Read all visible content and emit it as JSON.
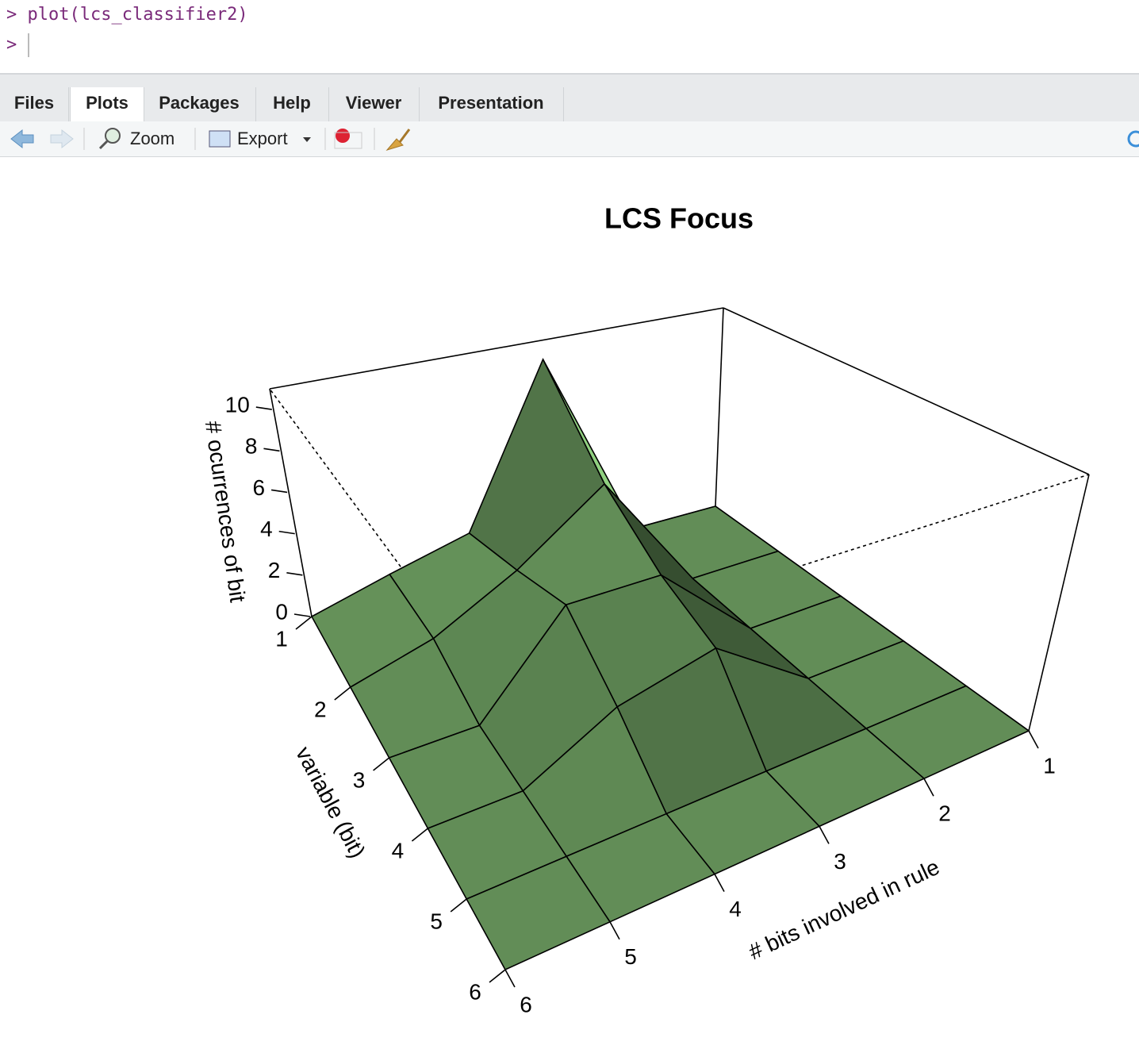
{
  "console": {
    "prompt": ">",
    "command": "plot(lcs_classifier2)"
  },
  "tabs": [
    "Files",
    "Plots",
    "Packages",
    "Help",
    "Viewer",
    "Presentation"
  ],
  "active_tab": 1,
  "toolbar": {
    "zoom": "Zoom",
    "export": "Export"
  },
  "chart_data": {
    "type": "surface",
    "title": "LCS Focus",
    "x_label": "# bits involved in rule",
    "y_label": "variable (bit)",
    "z_label": "# ocurrences of bit",
    "x": [
      1,
      2,
      3,
      4,
      5,
      6
    ],
    "y": [
      1,
      2,
      3,
      4,
      5,
      6
    ],
    "z": [
      [
        0,
        0,
        10,
        2,
        1,
        0
      ],
      [
        0,
        0,
        6,
        3,
        1,
        0
      ],
      [
        0,
        0,
        4,
        4,
        0,
        0
      ],
      [
        0,
        0,
        3,
        2,
        0,
        0
      ],
      [
        0,
        0,
        0,
        0,
        0,
        0
      ],
      [
        0,
        0,
        0,
        0,
        0,
        0
      ]
    ],
    "xlim": [
      1,
      6
    ],
    "ylim": [
      1,
      6
    ],
    "zlim": [
      0,
      11
    ],
    "xticks": [
      1,
      2,
      3,
      4,
      5,
      6
    ],
    "yticks": [
      1,
      2,
      3,
      4,
      5,
      6
    ],
    "zticks": [
      0,
      2,
      4,
      6,
      8,
      10
    ],
    "color": "#90d080"
  }
}
